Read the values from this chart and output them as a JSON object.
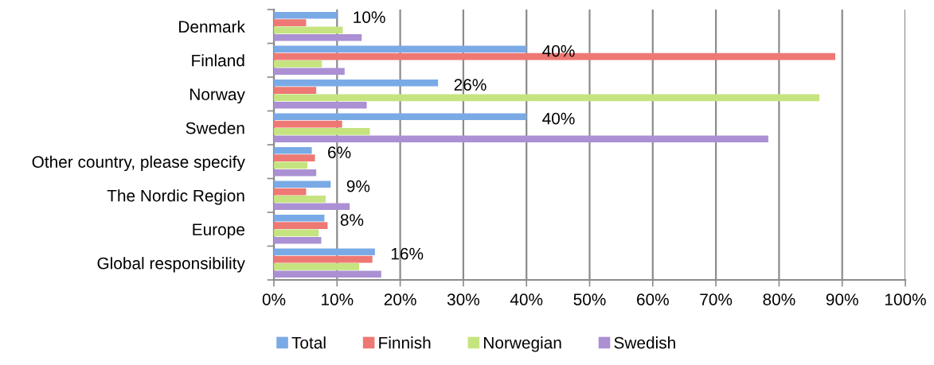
{
  "chart_data": {
    "type": "bar",
    "orientation": "horizontal",
    "categories": [
      "Denmark",
      "Finland",
      "Norway",
      "Sweden",
      "Other country, please specify",
      "The Nordic Region",
      "Europe",
      "Global responsibility"
    ],
    "series": [
      {
        "name": "Total",
        "color": "#7aaae6",
        "values": [
          10,
          40,
          26,
          40,
          6,
          9,
          8,
          16
        ],
        "value_labels": [
          "10%",
          "40%",
          "26%",
          "40%",
          "6%",
          "9%",
          "8%",
          "16%"
        ]
      },
      {
        "name": "Finnish",
        "color": "#ee7873",
        "values": [
          5.1,
          88.9,
          6.7,
          10.8,
          6.5,
          5.1,
          8.5,
          15.6
        ]
      },
      {
        "name": "Norwegian",
        "color": "#c5e47f",
        "values": [
          10.9,
          7.6,
          86.4,
          15.2,
          5.3,
          8.2,
          7.1,
          13.5
        ]
      },
      {
        "name": "Swedish",
        "color": "#ab90d3",
        "values": [
          13.9,
          11.2,
          14.7,
          78.3,
          6.7,
          12.0,
          7.5,
          17.0
        ]
      }
    ],
    "xlim": [
      0,
      100
    ],
    "xticks": [
      {
        "value": 0,
        "label": "0%"
      },
      {
        "value": 10,
        "label": "10%"
      },
      {
        "value": 20,
        "label": "20%"
      },
      {
        "value": 30,
        "label": "30%"
      },
      {
        "value": 40,
        "label": "40%"
      },
      {
        "value": 50,
        "label": "50%"
      },
      {
        "value": 60,
        "label": "60%"
      },
      {
        "value": 70,
        "label": "70%"
      },
      {
        "value": 80,
        "label": "80%"
      },
      {
        "value": 90,
        "label": "90%"
      },
      {
        "value": 100,
        "label": "100%"
      }
    ],
    "grid": "x",
    "legend": "bottom"
  }
}
